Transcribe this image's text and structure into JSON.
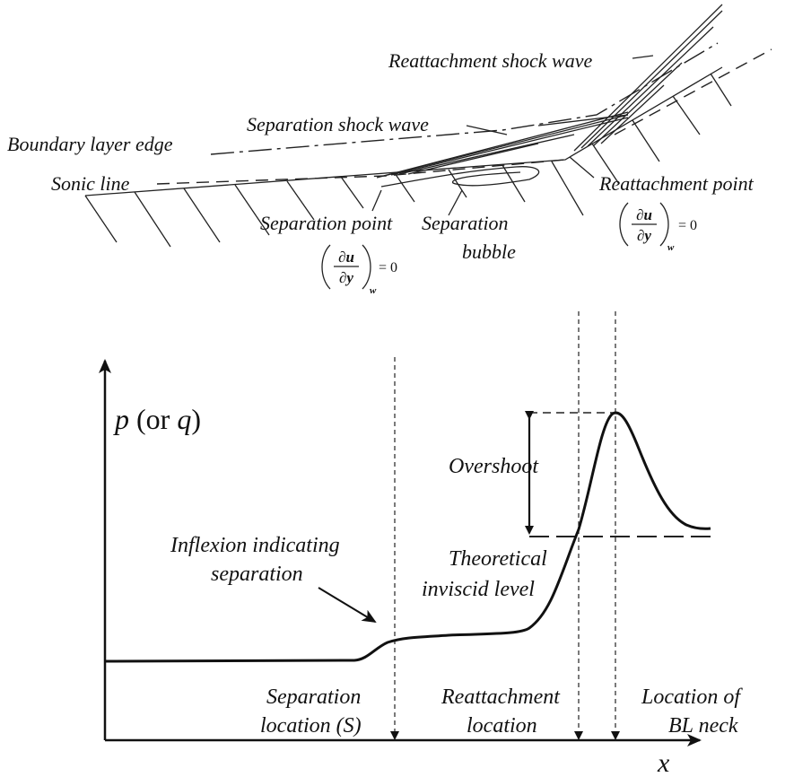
{
  "flow_sketch": {
    "reattachment_shock": "Reattachment shock wave",
    "separation_shock": "Separation shock wave",
    "boundary_layer_edge": "Boundary layer edge",
    "sonic_line": "Sonic line",
    "reattachment_point": {
      "label": "Reattachment point",
      "numerator": "∂u",
      "denominator": "∂y",
      "subscript": "w",
      "equals": "= 0"
    },
    "separation_point": {
      "label": "Separation point",
      "numerator": "∂u",
      "denominator": "∂y",
      "subscript": "w",
      "equals": "= 0"
    },
    "separation_bubble": [
      "Separation",
      "bubble"
    ]
  },
  "pressure_plot": {
    "y_axis_label": [
      "p",
      "(or",
      "q",
      ")"
    ],
    "x_axis_label": "x",
    "overshoot": "Overshoot",
    "inflexion": [
      "Inflexion indicating",
      "separation"
    ],
    "inviscid_level": [
      "Theoretical",
      "inviscid level"
    ],
    "separation_location": [
      "Separation",
      "location (S)"
    ],
    "reattachment_location": [
      "Reattachment",
      "location"
    ],
    "bl_neck": [
      "Location of",
      "BL neck"
    ]
  }
}
